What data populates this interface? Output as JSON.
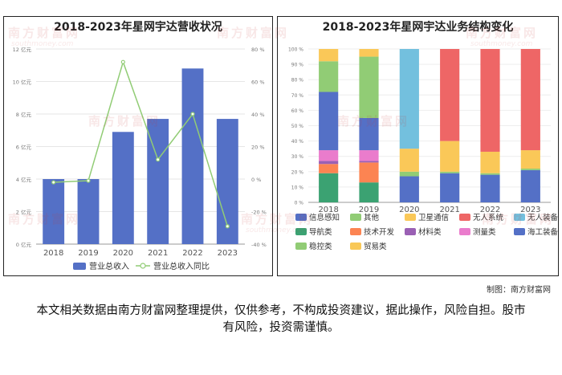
{
  "chart_data": [
    {
      "type": "bar+line",
      "title": "2018-2023年星网宇达营收状况",
      "categories": [
        "2018",
        "2019",
        "2020",
        "2021",
        "2022",
        "2023"
      ],
      "series": [
        {
          "name": "营业总收入",
          "type": "bar",
          "axis": "left",
          "values": [
            4.0,
            4.0,
            6.9,
            7.7,
            10.8,
            7.7
          ]
        },
        {
          "name": "营业总收入同比",
          "type": "line",
          "axis": "right",
          "values": [
            -2,
            -1,
            72,
            12,
            40,
            -29
          ]
        }
      ],
      "left_axis": {
        "ticks": [
          "0 亿元",
          "2 亿元",
          "4 亿元",
          "6 亿元",
          "8 亿元",
          "10 亿元",
          "12 亿元"
        ],
        "ylim": [
          0,
          12
        ]
      },
      "right_axis": {
        "ticks": [
          "-40 %",
          "-20 %",
          "0 %",
          "20 %",
          "40 %",
          "60 %",
          "80 %"
        ],
        "ylim": [
          -40,
          80
        ]
      },
      "colors": {
        "bar": "#5470c6",
        "line": "#91cc75"
      },
      "legend": "bottom"
    },
    {
      "type": "stacked-bar-100",
      "title": "2018-2023年星网宇达业务结构变化",
      "categories": [
        "2018",
        "2019",
        "2020",
        "2021",
        "2022",
        "2023"
      ],
      "y_ticks": [
        "0 %",
        "10 %",
        "20 %",
        "30 %",
        "40 %",
        "50 %",
        "60 %",
        "70 %",
        "80 %",
        "90 %",
        "100 %"
      ],
      "ylim": [
        0,
        100
      ],
      "series": [
        {
          "name": "导航类",
          "color": "#3ba272",
          "values": [
            19,
            13,
            0,
            0,
            0,
            0
          ]
        },
        {
          "name": "技术开发",
          "color": "#fc8452",
          "values": [
            6,
            13,
            0,
            0,
            0,
            0
          ]
        },
        {
          "name": "材料类",
          "color": "#9a60b4",
          "values": [
            2,
            1,
            0,
            0,
            0,
            0
          ]
        },
        {
          "name": "测量类",
          "color": "#ea7ccc",
          "values": [
            7,
            7,
            0,
            0,
            0,
            0
          ]
        },
        {
          "name": "海工装备",
          "color": "#5470c6",
          "values": [
            0,
            0,
            17,
            19,
            18,
            21
          ]
        },
        {
          "name": "稳控类",
          "color": "#91cc75",
          "values": [
            0,
            0,
            3,
            1,
            1,
            1
          ]
        },
        {
          "name": "信息感知",
          "color": "#5470c6",
          "values": [
            38,
            21,
            0,
            0,
            0,
            0
          ]
        },
        {
          "name": "其他",
          "color": "#91cc75",
          "values": [
            20,
            40,
            0,
            0,
            0,
            0
          ]
        },
        {
          "name": "卫星通信",
          "color": "#fac858",
          "values": [
            8,
            5,
            15,
            20,
            14,
            12
          ]
        },
        {
          "name": "贸易类",
          "color": "#f9c857",
          "values": [
            0,
            0,
            0,
            0,
            0,
            0
          ]
        },
        {
          "name": "无人装备",
          "color": "#73c0de",
          "values": [
            0,
            0,
            65,
            0,
            0,
            0
          ]
        },
        {
          "name": "无人系统",
          "color": "#ee6666",
          "values": [
            0,
            0,
            0,
            60,
            67,
            66
          ]
        }
      ],
      "legend_order": [
        "信息感知",
        "其他",
        "卫星通信",
        "无人系统",
        "无人装备",
        "导航类",
        "技术开发",
        "材料类",
        "测量类",
        "海工装备",
        "稳控类",
        "贸易类"
      ],
      "legend": "bottom"
    }
  ],
  "credit": "制图：南方财富网",
  "disclaimer": "本文相关数据由南方财富网整理提供，仅供参考，不构成投资建议，据此操作，风险自担。股市有风险，投资需谨慎。",
  "watermark": {
    "cn": "南方财富网",
    "en": "southmoney.com"
  }
}
